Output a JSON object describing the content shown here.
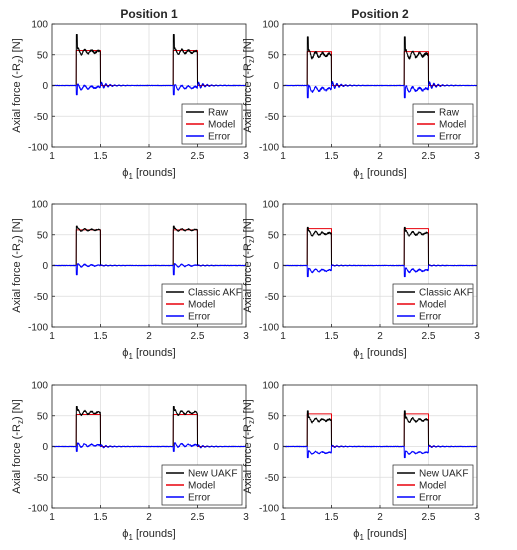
{
  "column_titles": [
    "Position 1",
    "Position 2"
  ],
  "colors": {
    "Raw": "#000000",
    "Model": "#e8000b",
    "Error": "#0000ff",
    "grid": "#dcdcdc",
    "axis": "#262626"
  },
  "chart_data": [
    {
      "type": "line",
      "title": "Position 1",
      "row": 0,
      "col": 0,
      "xlabel": "ϕ₁ [rounds]",
      "ylabel": "Axial force (-R_z) [N]",
      "xlim": [
        1,
        3
      ],
      "ylim": [
        -100,
        100
      ],
      "xticks": [
        "1",
        "1.5",
        "2",
        "2.5",
        "3"
      ],
      "yticks": [
        "100",
        "50",
        "0",
        "-50",
        "-100"
      ],
      "grid": true,
      "legend_position": "bottom-right",
      "pulse": {
        "start": [
          1.25,
          2.25
        ],
        "end": [
          1.5,
          2.5
        ]
      },
      "series": [
        {
          "name": "Raw",
          "plateau": 55,
          "spike": 83,
          "variation": 6,
          "ripple": 4
        },
        {
          "name": "Model",
          "plateau": 57
        },
        {
          "name": "Error",
          "plateau": -3,
          "spike": -15,
          "variation": 5,
          "ripple": 6
        }
      ]
    },
    {
      "type": "line",
      "title": "Position 2",
      "row": 0,
      "col": 1,
      "xlabel": "ϕ₁ [rounds]",
      "ylabel": "Axial force (-R_z) [N]",
      "xlim": [
        1,
        3
      ],
      "ylim": [
        -100,
        100
      ],
      "xticks": [
        "1",
        "1.5",
        "2",
        "2.5",
        "3"
      ],
      "yticks": [
        "100",
        "50",
        "0",
        "-50",
        "-100"
      ],
      "grid": true,
      "legend_position": "bottom-right",
      "pulse": {
        "start": [
          1.25,
          2.25
        ],
        "end": [
          1.5,
          2.5
        ]
      },
      "series": [
        {
          "name": "Raw",
          "plateau": 50,
          "spike": 79,
          "variation": 8,
          "ripple": 4
        },
        {
          "name": "Model",
          "plateau": 55
        },
        {
          "name": "Error",
          "plateau": -6,
          "spike": -20,
          "variation": 6,
          "ripple": 7
        }
      ]
    },
    {
      "type": "line",
      "title": "",
      "row": 1,
      "col": 0,
      "xlabel": "ϕ₁ [rounds]",
      "ylabel": "Axial force (-R_z) [N]",
      "xlim": [
        1,
        3
      ],
      "ylim": [
        -100,
        100
      ],
      "xticks": [
        "1",
        "1.5",
        "2",
        "2.5",
        "3"
      ],
      "yticks": [
        "100",
        "50",
        "0",
        "-50",
        "-100"
      ],
      "grid": true,
      "legend_position": "bottom-right",
      "pulse": {
        "start": [
          1.25,
          2.25
        ],
        "end": [
          1.5,
          2.5
        ]
      },
      "series": [
        {
          "name": "Classic AKF",
          "plateau": 58,
          "spike": 64,
          "variation": 3,
          "ripple": 1
        },
        {
          "name": "Model",
          "plateau": 58
        },
        {
          "name": "Error",
          "plateau": 0,
          "spike": -15,
          "variation": 3,
          "ripple": 1
        }
      ]
    },
    {
      "type": "line",
      "title": "",
      "row": 1,
      "col": 1,
      "xlabel": "ϕ₁ [rounds]",
      "ylabel": "Axial force (-R_z) [N]",
      "xlim": [
        1,
        3
      ],
      "ylim": [
        -100,
        100
      ],
      "xticks": [
        "1",
        "1.5",
        "2",
        "2.5",
        "3"
      ],
      "yticks": [
        "100",
        "50",
        "0",
        "-50",
        "-100"
      ],
      "grid": true,
      "legend_position": "bottom-right",
      "pulse": {
        "start": [
          1.25,
          2.25
        ],
        "end": [
          1.5,
          2.5
        ]
      },
      "series": [
        {
          "name": "Classic AKF",
          "plateau": 52,
          "spike": 62,
          "variation": 5,
          "ripple": 1
        },
        {
          "name": "Model",
          "plateau": 60
        },
        {
          "name": "Error",
          "plateau": -8,
          "spike": -18,
          "variation": 4,
          "ripple": 1
        }
      ]
    },
    {
      "type": "line",
      "title": "",
      "row": 2,
      "col": 0,
      "xlabel": "ϕ₁ [rounds]",
      "ylabel": "Axial force (-R_z) [N]",
      "xlim": [
        1,
        3
      ],
      "ylim": [
        -100,
        100
      ],
      "xticks": [
        "1",
        "1.5",
        "2",
        "2.5",
        "3"
      ],
      "yticks": [
        "100",
        "50",
        "0",
        "-50",
        "-100"
      ],
      "grid": true,
      "legend_position": "bottom-right",
      "pulse": {
        "start": [
          1.25,
          2.25
        ],
        "end": [
          1.5,
          2.5
        ]
      },
      "series": [
        {
          "name": "New UAKF",
          "plateau": 55,
          "spike": 65,
          "variation": 5,
          "ripple": 2
        },
        {
          "name": "Model",
          "plateau": 52
        },
        {
          "name": "Error",
          "plateau": 2,
          "spike": -8,
          "variation": 4,
          "ripple": 3
        }
      ]
    },
    {
      "type": "line",
      "title": "",
      "row": 2,
      "col": 1,
      "xlabel": "ϕ₁ [rounds]",
      "ylabel": "Axial force (-R_z) [N]",
      "xlim": [
        1,
        3
      ],
      "ylim": [
        -100,
        100
      ],
      "xticks": [
        "1",
        "1.5",
        "2",
        "2.5",
        "3"
      ],
      "yticks": [
        "100",
        "50",
        "0",
        "-50",
        "-100"
      ],
      "grid": true,
      "legend_position": "bottom-right",
      "pulse": {
        "start": [
          1.25,
          2.25
        ],
        "end": [
          1.5,
          2.5
        ]
      },
      "series": [
        {
          "name": "New UAKF",
          "plateau": 43,
          "spike": 58,
          "variation": 5,
          "ripple": 2
        },
        {
          "name": "Model",
          "plateau": 53
        },
        {
          "name": "Error",
          "plateau": -10,
          "spike": -18,
          "variation": 3,
          "ripple": 2
        }
      ]
    }
  ]
}
